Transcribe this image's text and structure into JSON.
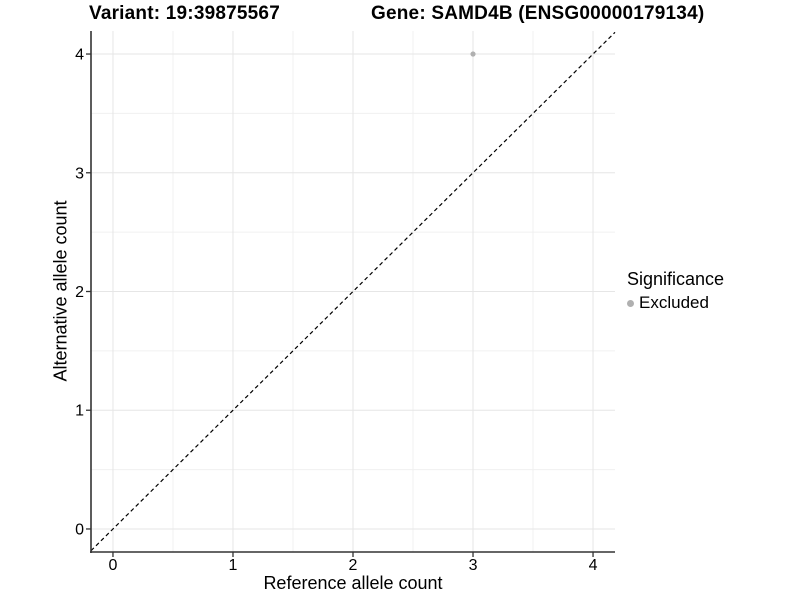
{
  "header": {
    "variant_title": "Variant: 19:39875567",
    "gene_title": "Gene: SAMD4B (ENSG00000179134)"
  },
  "legend": {
    "title": "Significance",
    "items": [
      {
        "label": "Excluded",
        "color": "#b0b0b0"
      }
    ]
  },
  "chart_data": {
    "type": "scatter",
    "title_left": "Variant: 19:39875567",
    "title_right": "Gene: SAMD4B (ENSG00000179134)",
    "xlabel": "Reference allele count",
    "ylabel": "Alternative allele count",
    "xlim": [
      -0.183,
      4.183
    ],
    "ylim": [
      -0.194,
      4.194
    ],
    "xticks": [
      0,
      1,
      2,
      3,
      4
    ],
    "yticks": [
      0,
      1,
      2,
      3,
      4
    ],
    "grid": true,
    "minor_grid": true,
    "legend_position": "right",
    "legend_title": "Significance",
    "series": [
      {
        "name": "Excluded",
        "color": "#b0b0b0",
        "points": [
          {
            "x": 3,
            "y": 4
          }
        ]
      }
    ],
    "reference_line": {
      "equation": "y = x",
      "style": "dashed",
      "color": "#000000"
    }
  },
  "colors": {
    "background": "#ffffff",
    "axis": "#333333",
    "grid_major": "#e6e6e6",
    "grid_minor": "#f0f0f0",
    "text": "#000000",
    "point": "#b0b0b0"
  }
}
